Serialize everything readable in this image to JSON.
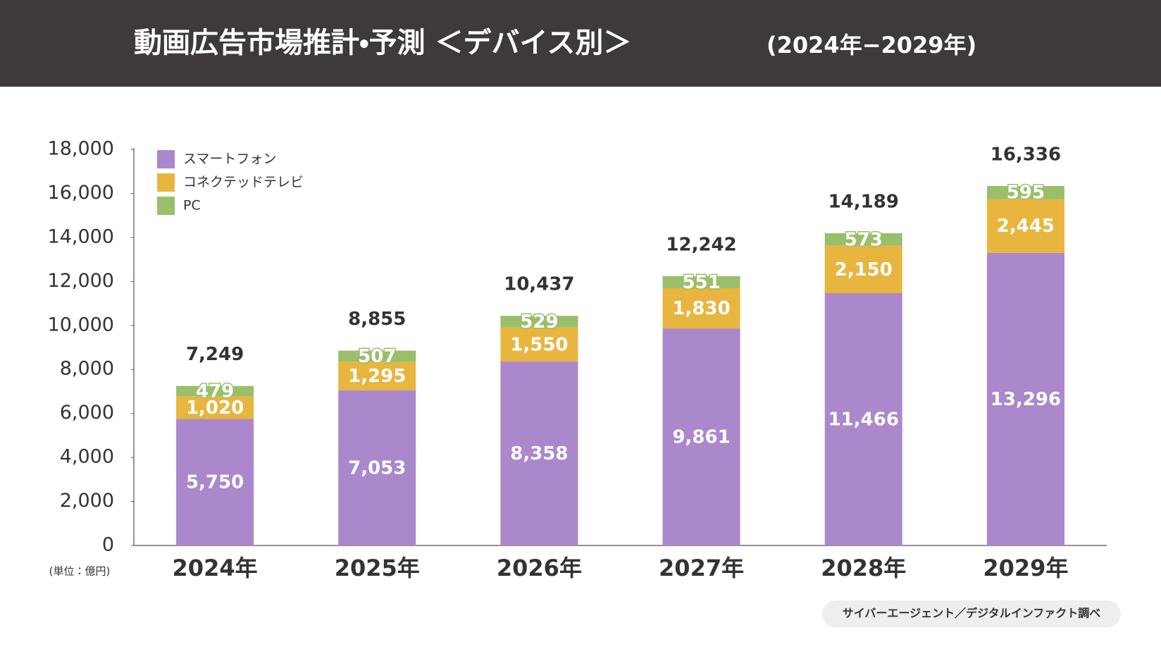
{
  "chart_data": {
    "type": "stacked_bar",
    "title": "動画広告市場推計・予測 ＜デバイス別＞",
    "title_period": "(2024年−2029年)",
    "unit_note": "(単位：億円)",
    "source": "サイバーエージェント／デジタルインファクト調べ",
    "categories": [
      "2024年",
      "2025年",
      "2026年",
      "2027年",
      "2028年",
      "2029年"
    ],
    "series": [
      {
        "name": "スマートフォン",
        "color": "#ab87cc",
        "values": [
          5750,
          7053,
          8358,
          9861,
          11466,
          13296
        ],
        "value_labels": [
          "5,750",
          "7,053",
          "8,358",
          "9,861",
          "11,466",
          "13,296"
        ]
      },
      {
        "name": "コネクテッドテレビ",
        "color": "#e8b53f",
        "values": [
          1020,
          1295,
          1550,
          1830,
          2150,
          2445
        ],
        "value_labels": [
          "1,020",
          "1,295",
          "1,550",
          "1,830",
          "2,150",
          "2,445"
        ]
      },
      {
        "name": "PC",
        "color": "#99bf6a",
        "values": [
          479,
          507,
          529,
          551,
          573,
          595
        ],
        "value_labels": [
          "479",
          "507",
          "529",
          "551",
          "573",
          "595"
        ]
      }
    ],
    "totals": {
      "values": [
        7249,
        8855,
        10437,
        12242,
        14189,
        16336
      ],
      "value_labels": [
        "7,249",
        "8,855",
        "10,437",
        "12,242",
        "14,189",
        "16,336"
      ]
    },
    "ylim": [
      0,
      18000
    ],
    "yticks": [
      0,
      {
        "value": 2000,
        "label": "2,000"
      },
      {
        "value": 4000,
        "label": "4,000"
      },
      {
        "value": 6000,
        "label": "6,000"
      },
      {
        "value": 8000,
        "label": "8,000"
      },
      {
        "value": 10000,
        "label": "10,000"
      },
      {
        "value": 12000,
        "label": "12,000"
      },
      {
        "value": 14000,
        "label": "14,000"
      },
      {
        "value": 16000,
        "label": "16,000"
      },
      {
        "value": 18000,
        "label": "18,000"
      }
    ],
    "legend": "top-left"
  }
}
